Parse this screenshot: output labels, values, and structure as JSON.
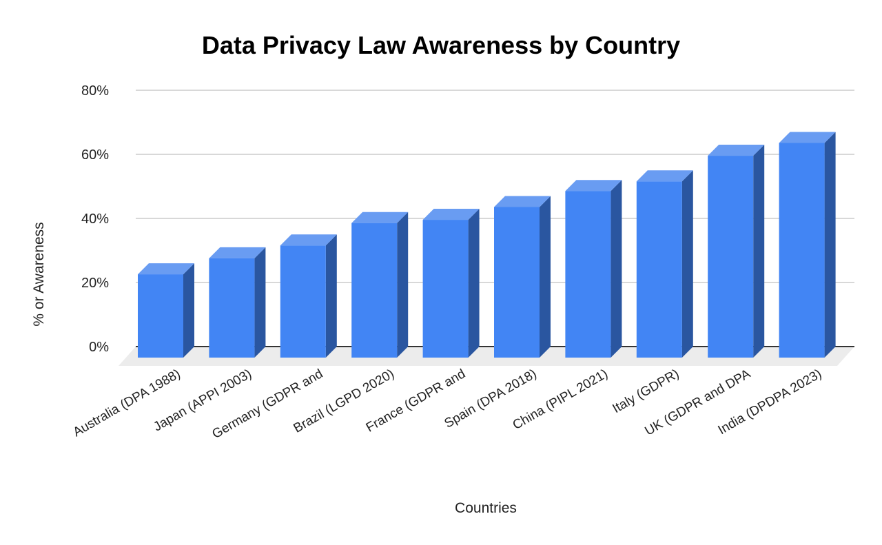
{
  "chart_data": {
    "type": "bar",
    "style": "3d",
    "title": "Data Privacy Law Awareness by Country",
    "xlabel": "Countries",
    "ylabel": "% or Awareness",
    "ylim": [
      0,
      80
    ],
    "yticks": [
      "0%",
      "20%",
      "40%",
      "60%",
      "80%"
    ],
    "grid": true,
    "legend": "none",
    "categories": [
      "Australia (DPA 1988)",
      "Japan (APPI 2003)",
      "Germany (GDPR and",
      "Brazil (LGPD 2020)",
      "France (GDPR and",
      "Spain (DPA 2018)",
      "China (PIPL 2021)",
      "Italy (GDPR)",
      "UK (GDPR and DPA",
      "India (DPDPA 2023)"
    ],
    "values": [
      26,
      31,
      35,
      42,
      43,
      47,
      52,
      55,
      63,
      67
    ],
    "colors": {
      "front": "#4285f4",
      "top": "#699cf2",
      "side": "#2a56a0",
      "floor": "#ececec",
      "grid": "#cccccc"
    }
  }
}
